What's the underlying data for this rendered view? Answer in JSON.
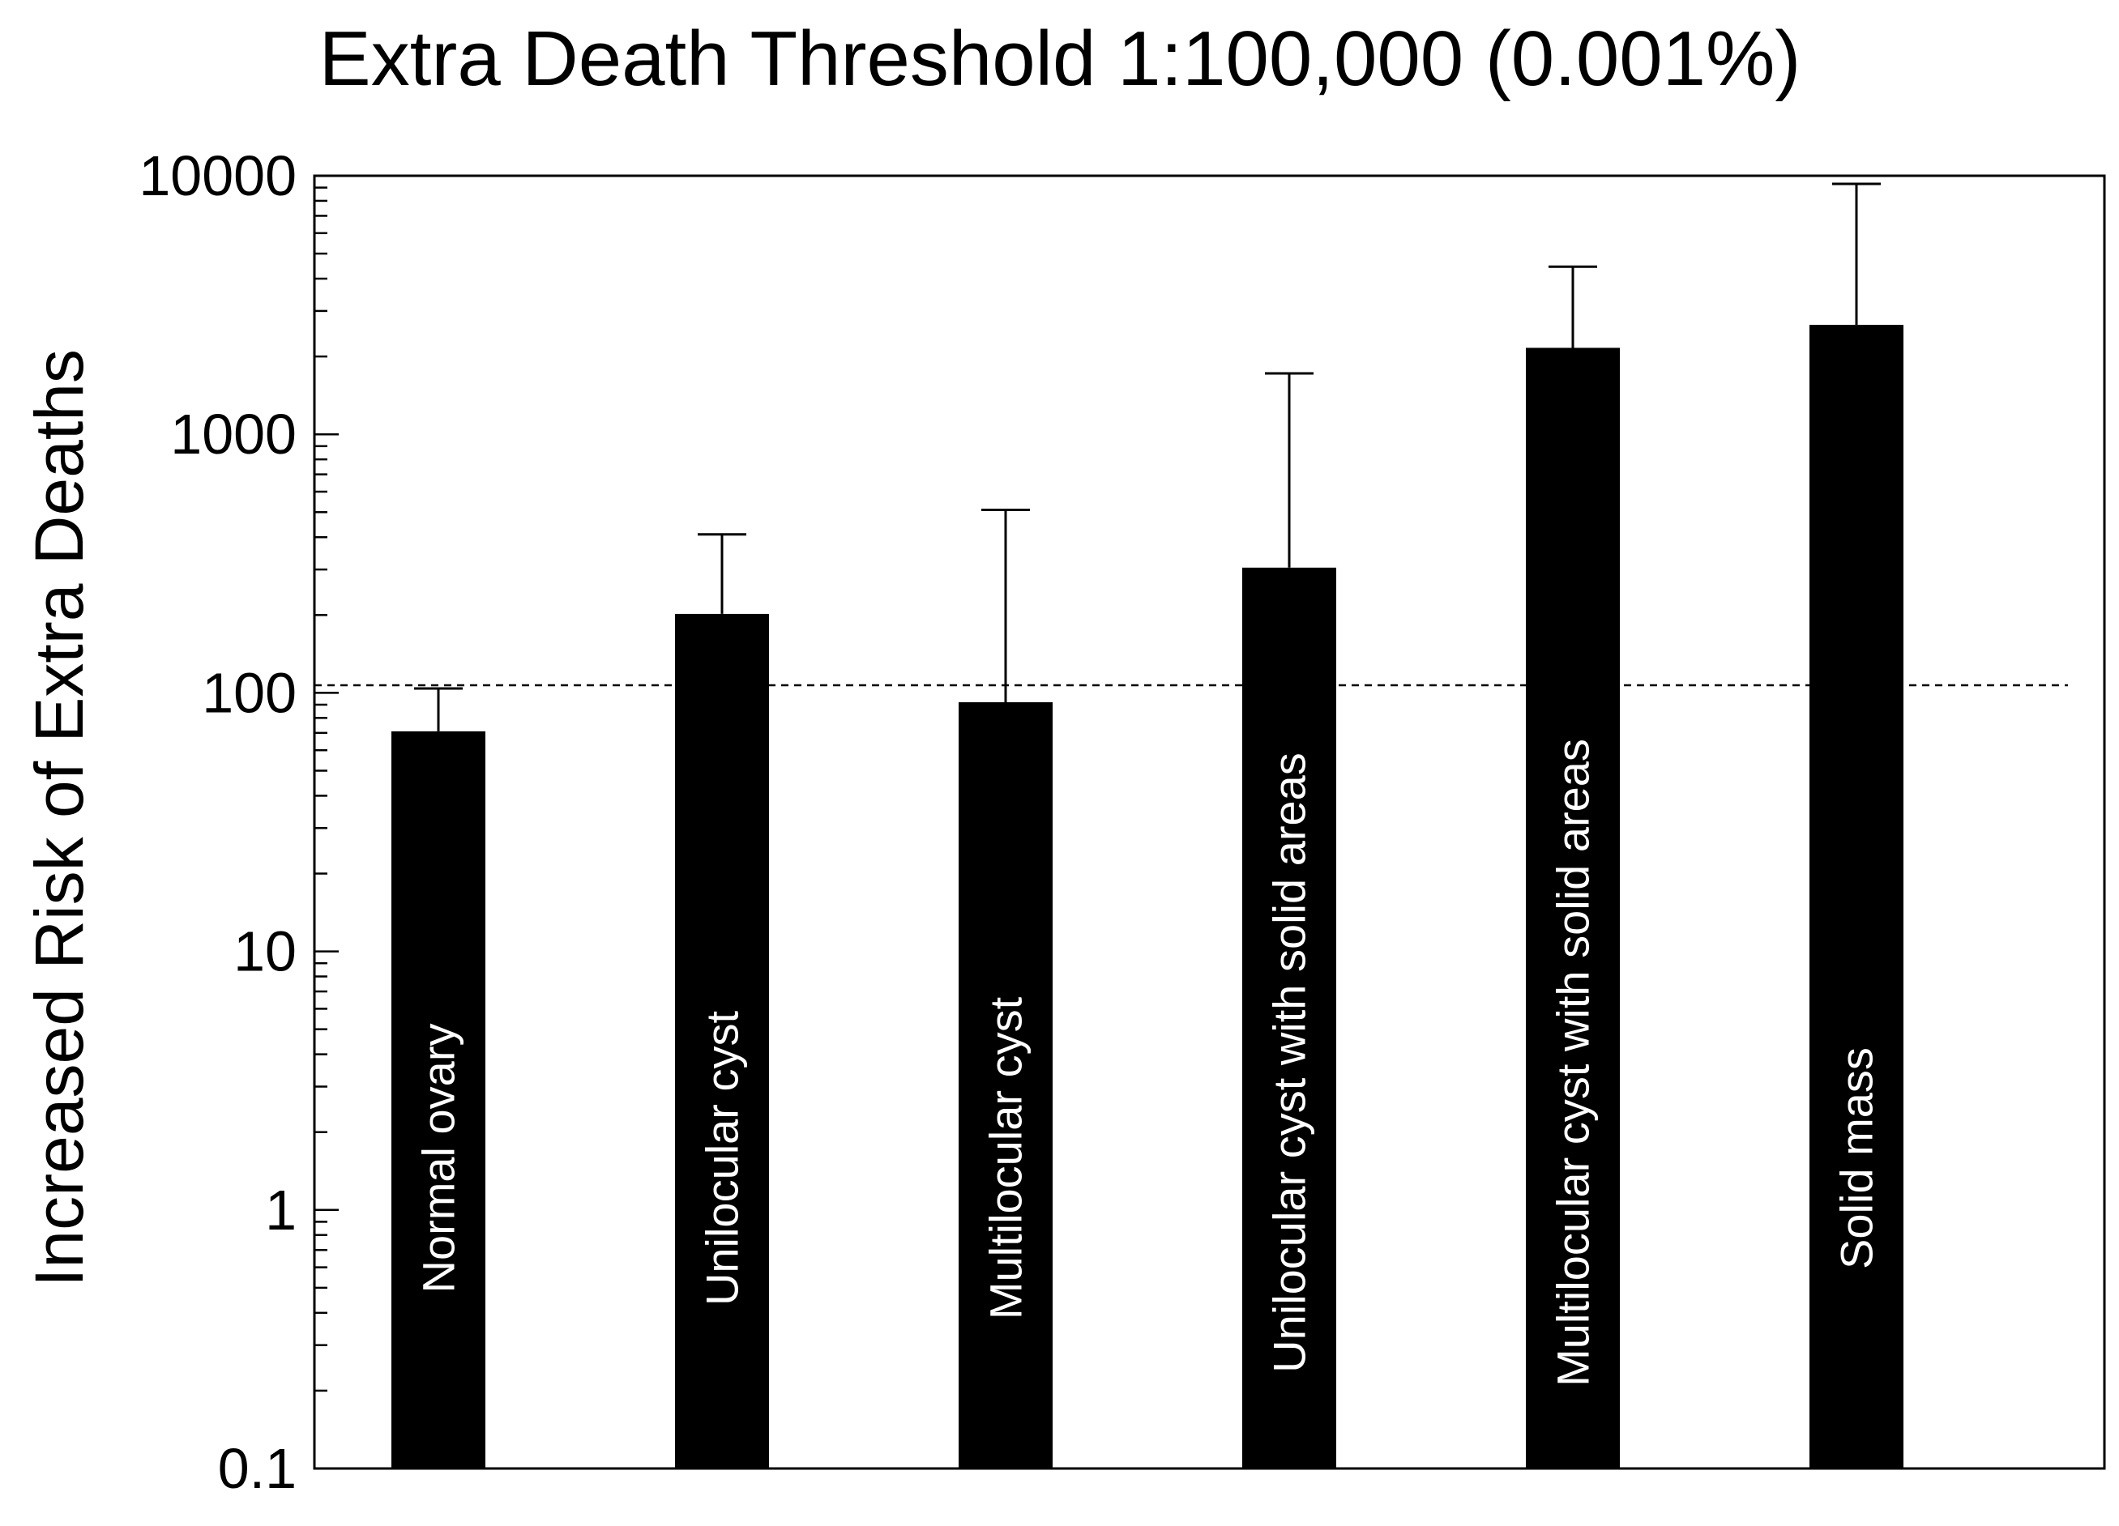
{
  "chart_data": {
    "type": "bar",
    "title": "Extra Death Threshold 1:100,000 (0.001%)",
    "xlabel": "",
    "ylabel": "Increased Risk of Extra Deaths",
    "yscale": "log",
    "ylim": [
      0.1,
      10000
    ],
    "yticks": [
      "10000",
      "1000",
      "100",
      "10",
      "1",
      "0.1"
    ],
    "grid": false,
    "categories": [
      "Normal ovary",
      "Unilocular cyst",
      "Multilocular cyst",
      "Unilocular cyst with solid areas",
      "Multilocular cyst with solid areas",
      "Solid mass"
    ],
    "values": [
      71,
      202,
      92,
      305,
      2160,
      2650
    ],
    "error_upper": [
      104,
      410,
      510,
      1720,
      4450,
      9300
    ],
    "threshold": 107,
    "colors": {
      "bar": "#000000",
      "bar_label": "#ffffff",
      "background": "#ffffff",
      "axis": "#000000"
    }
  }
}
